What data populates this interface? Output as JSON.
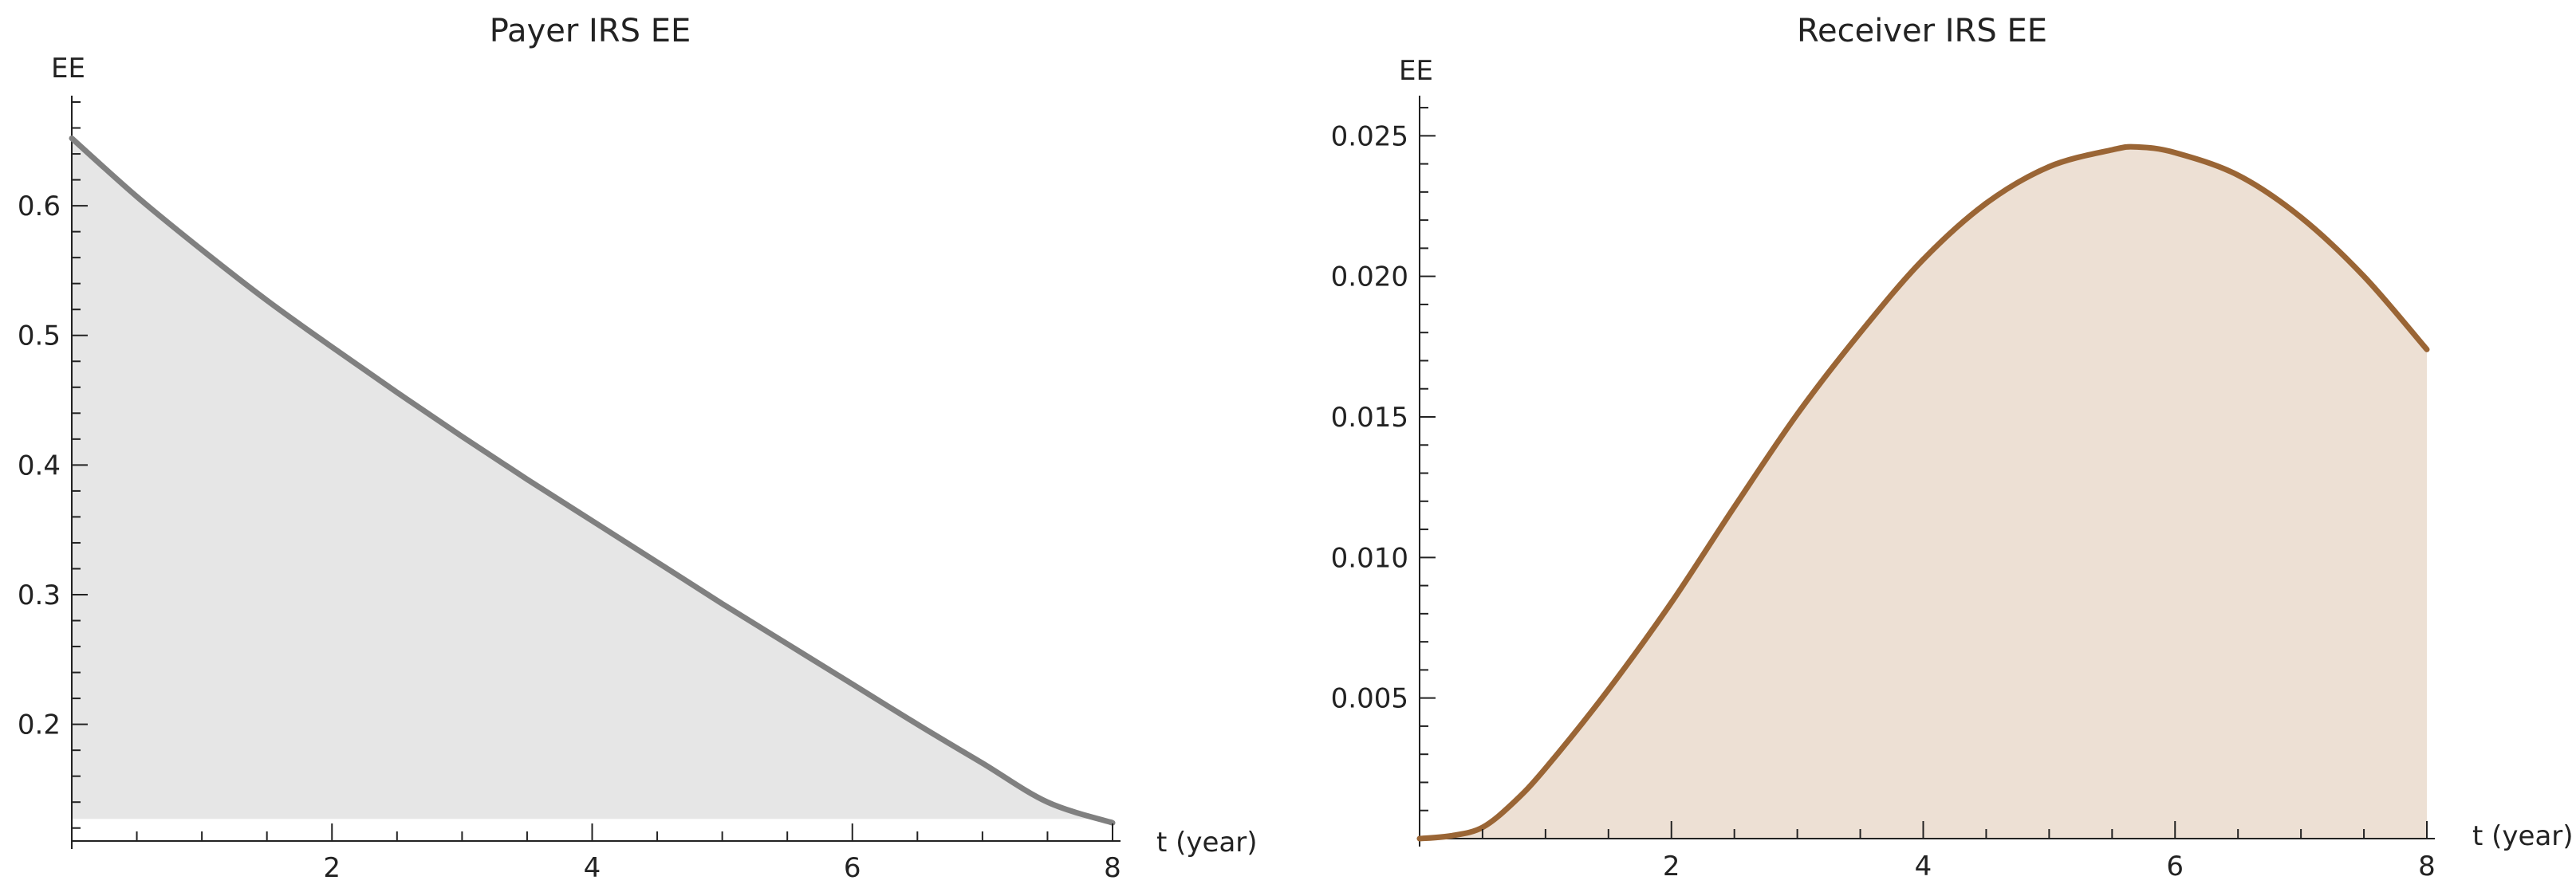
{
  "chart_data": [
    {
      "type": "area",
      "title": "Payer IRS EE",
      "xlabel": "t (year)",
      "ylabel": "EE",
      "xlim": [
        0,
        8
      ],
      "ylim": [
        0.11,
        0.68
      ],
      "x_ticks": [
        2,
        4,
        6,
        8
      ],
      "y_ticks": [
        0.2,
        0.3,
        0.4,
        0.5,
        0.6
      ],
      "x_tick_labels": [
        "2",
        "4",
        "6",
        "8"
      ],
      "y_tick_labels": [
        "0.2",
        "0.3",
        "0.4",
        "0.5",
        "0.6"
      ],
      "fill_base": 0.127,
      "grid": false,
      "line_color": "#808080",
      "fill_color": "#e6e6e6",
      "series": [
        {
          "x": [
            0,
            0.5,
            1,
            1.5,
            2,
            2.5,
            3,
            3.5,
            4,
            4.5,
            5,
            5.5,
            6,
            6.5,
            7,
            7.5,
            8
          ],
          "values": [
            0.652,
            0.607,
            0.566,
            0.527,
            0.491,
            0.456,
            0.422,
            0.389,
            0.357,
            0.325,
            0.293,
            0.262,
            0.231,
            0.2,
            0.17,
            0.14,
            0.124
          ]
        }
      ]
    },
    {
      "type": "area",
      "title": "Receiver IRS EE",
      "xlabel": "t (year)",
      "ylabel": "EE",
      "xlim": [
        0,
        8
      ],
      "ylim": [
        0,
        0.0262
      ],
      "x_ticks": [
        2,
        4,
        6,
        8
      ],
      "y_ticks": [
        0.005,
        0.01,
        0.015,
        0.02,
        0.025
      ],
      "x_tick_labels": [
        "2",
        "4",
        "6",
        "8"
      ],
      "y_tick_labels": [
        "0.005",
        "0.010",
        "0.015",
        "0.020",
        "0.025"
      ],
      "fill_base": 0,
      "grid": false,
      "line_color": "#9a6535",
      "fill_color": "#ede0d4",
      "series": [
        {
          "x": [
            0,
            0.25,
            0.5,
            0.75,
            1,
            1.5,
            2,
            2.5,
            3,
            3.5,
            4,
            4.5,
            5,
            5.5,
            5.7,
            6,
            6.5,
            7,
            7.5,
            8
          ],
          "values": [
            0.0,
            0.0001,
            0.0004,
            0.0013,
            0.0025,
            0.0053,
            0.0084,
            0.0118,
            0.0151,
            0.018,
            0.0206,
            0.0226,
            0.0239,
            0.0245,
            0.0246,
            0.0244,
            0.0236,
            0.0221,
            0.02,
            0.0174
          ]
        }
      ]
    }
  ]
}
